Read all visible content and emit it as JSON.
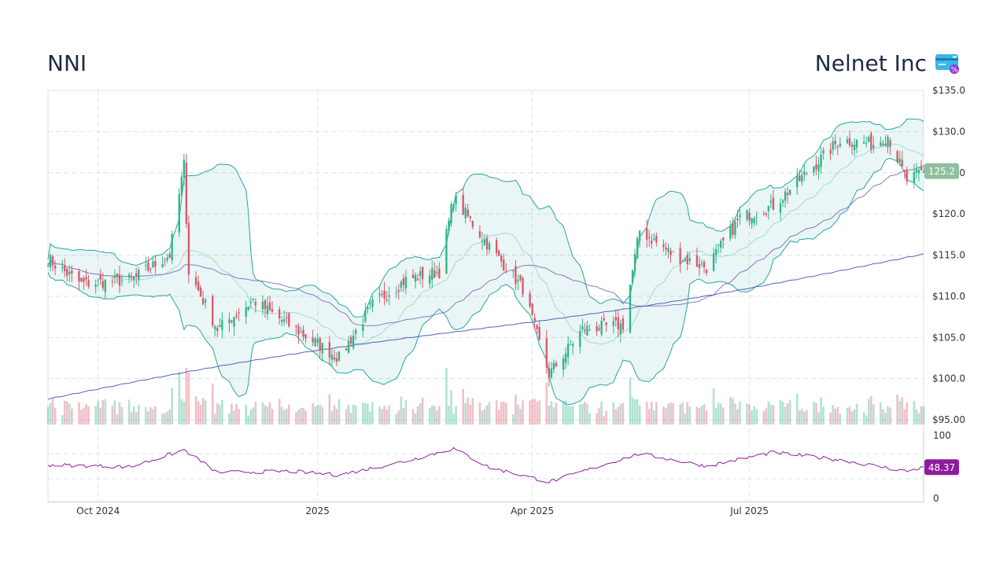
{
  "header": {
    "ticker": "NNI",
    "company": "Nelnet Inc",
    "logo_icon": "credit-card-percent-icon"
  },
  "colors": {
    "up": "#2fb58a",
    "down": "#d9596b",
    "band": "#26a69a",
    "ma_short": "#7c6cbf",
    "ma_long": "#3f51b5",
    "rsi": "#8e1d9e",
    "last_price_badge": "#8fbf9f",
    "rsi_badge": "#8e1d9e",
    "grid": "#d6e4ea"
  },
  "chart_data": [
    {
      "type": "candlestick",
      "title": "NNI",
      "subtitle": "Nelnet Inc",
      "x_tick_labels": [
        "Oct 2024",
        "2025",
        "Apr 2025",
        "Jul 2025"
      ],
      "y_tick_labels": [
        "$135.0",
        "$130.0",
        "$125.0",
        "$120.0",
        "$115.0",
        "$110.0",
        "$105.0",
        "$100.0",
        "$95.00"
      ],
      "ylim": [
        95,
        135
      ],
      "grid": true,
      "last_price_label": "125.2",
      "approx_close_path": [
        {
          "date": "2024-09-10",
          "close": 114.5
        },
        {
          "date": "2024-09-24",
          "close": 111.5
        },
        {
          "date": "2024-10-15",
          "close": 112.0
        },
        {
          "date": "2024-10-31",
          "close": 115.0
        },
        {
          "date": "2024-11-06",
          "close": 126.0
        },
        {
          "date": "2024-11-08",
          "close": 113.0
        },
        {
          "date": "2024-11-20",
          "close": 106.0
        },
        {
          "date": "2024-12-05",
          "close": 109.5
        },
        {
          "date": "2024-12-20",
          "close": 106.5
        },
        {
          "date": "2025-01-10",
          "close": 102.5
        },
        {
          "date": "2025-01-24",
          "close": 109.0
        },
        {
          "date": "2025-02-07",
          "close": 112.0
        },
        {
          "date": "2025-02-21",
          "close": 113.0
        },
        {
          "date": "2025-02-27",
          "close": 122.0
        },
        {
          "date": "2025-03-14",
          "close": 116.0
        },
        {
          "date": "2025-03-28",
          "close": 111.0
        },
        {
          "date": "2025-04-08",
          "close": 100.5
        },
        {
          "date": "2025-04-22",
          "close": 106.0
        },
        {
          "date": "2025-05-09",
          "close": 106.5
        },
        {
          "date": "2025-05-16",
          "close": 118.0
        },
        {
          "date": "2025-05-30",
          "close": 115.0
        },
        {
          "date": "2025-06-13",
          "close": 113.5
        },
        {
          "date": "2025-06-27",
          "close": 119.5
        },
        {
          "date": "2025-07-11",
          "close": 121.0
        },
        {
          "date": "2025-07-25",
          "close": 125.0
        },
        {
          "date": "2025-08-08",
          "close": 129.0
        },
        {
          "date": "2025-08-22",
          "close": 128.5
        },
        {
          "date": "2025-08-28",
          "close": 129.5
        },
        {
          "date": "2025-09-05",
          "close": 124.0
        },
        {
          "date": "2025-09-12",
          "close": 125.2
        }
      ],
      "series": [
        {
          "type": "candlestick"
        },
        {
          "type": "bollinger_bands"
        },
        {
          "type": "moving_average_short"
        },
        {
          "type": "moving_average_long"
        },
        {
          "type": "volume"
        }
      ]
    },
    {
      "type": "line",
      "y_tick_labels": [
        "100",
        "0"
      ],
      "ylim": [
        0,
        100
      ],
      "grid": true,
      "last_value_label": "48.37",
      "approx_path": [
        {
          "date": "2024-09-10",
          "value": 52
        },
        {
          "date": "2024-10-15",
          "value": 49
        },
        {
          "date": "2024-11-06",
          "value": 76
        },
        {
          "date": "2024-11-20",
          "value": 40
        },
        {
          "date": "2024-12-20",
          "value": 42
        },
        {
          "date": "2025-01-10",
          "value": 36
        },
        {
          "date": "2025-02-07",
          "value": 58
        },
        {
          "date": "2025-02-27",
          "value": 78
        },
        {
          "date": "2025-03-14",
          "value": 48
        },
        {
          "date": "2025-04-08",
          "value": 25
        },
        {
          "date": "2025-05-16",
          "value": 70
        },
        {
          "date": "2025-06-13",
          "value": 50
        },
        {
          "date": "2025-07-11",
          "value": 72
        },
        {
          "date": "2025-08-08",
          "value": 60
        },
        {
          "date": "2025-09-05",
          "value": 42
        },
        {
          "date": "2025-09-12",
          "value": 48.37
        }
      ]
    }
  ]
}
